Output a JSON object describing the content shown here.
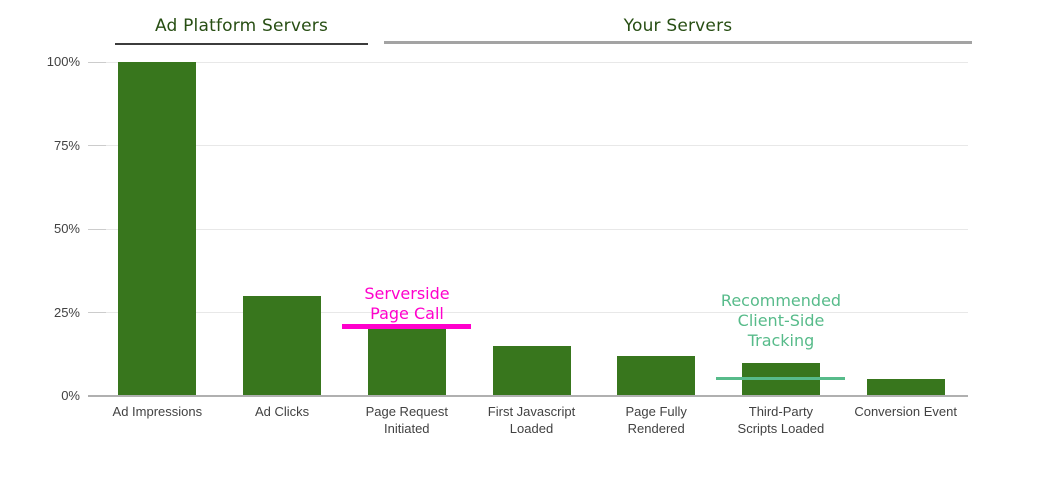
{
  "group_headers": {
    "ad_platform": "Ad Platform Servers",
    "your_servers": "Your Servers"
  },
  "y_axis": {
    "tick_labels": [
      "100%",
      "75%",
      "50%",
      "25%",
      "0%"
    ],
    "tick_values": [
      100,
      75,
      50,
      25,
      0
    ]
  },
  "x_labels_display": [
    "Ad Impressions",
    "Ad Clicks",
    "Page Request\nInitiated",
    "First Javascript\nLoaded",
    "Page Fully\nRendered",
    "Third-Party\nScripts Loaded",
    "Conversion Event"
  ],
  "annotations": {
    "serverside": {
      "lines": [
        "Serverside",
        "Page Call"
      ],
      "color": "#ff00cc",
      "marks_bar": "Page Request Initiated",
      "line_at_percent": 20
    },
    "recommended": {
      "lines": [
        "Recommended",
        "Client-Side",
        "Tracking"
      ],
      "color": "#57bb8a",
      "marks_bar": "Third-Party Scripts Loaded",
      "line_at_percent": 6
    }
  },
  "colors": {
    "bg": "#ffffff",
    "bar_green": "#38761d",
    "heading_green": "#274e13",
    "magenta": "#ff00cc",
    "teal_green": "#57bb8a",
    "gridline": "#e8e8e8",
    "tick_stub": "#cccccc",
    "baseline": "#b0b0b0",
    "axis_text": "#424242",
    "dark_rule": "#3c3c3c",
    "gray_rule": "#a3a3a3"
  },
  "chart_data": {
    "type": "bar",
    "title": "",
    "xlabel": "",
    "ylabel": "",
    "categories": [
      "Ad Impressions",
      "Ad Clicks",
      "Page Request Initiated",
      "First Javascript Loaded",
      "Page Fully Rendered",
      "Third-Party Scripts Loaded",
      "Conversion Event"
    ],
    "values": [
      100,
      30,
      20,
      15,
      12,
      10,
      5
    ],
    "unit": "%",
    "ylim": [
      0,
      100
    ],
    "grid": true,
    "legend": false,
    "bar_color": "#38761d",
    "groups": [
      {
        "label": "Ad Platform Servers",
        "categories_span": [
          0,
          1
        ]
      },
      {
        "label": "Your Servers",
        "categories_span": [
          2,
          6
        ]
      }
    ]
  }
}
